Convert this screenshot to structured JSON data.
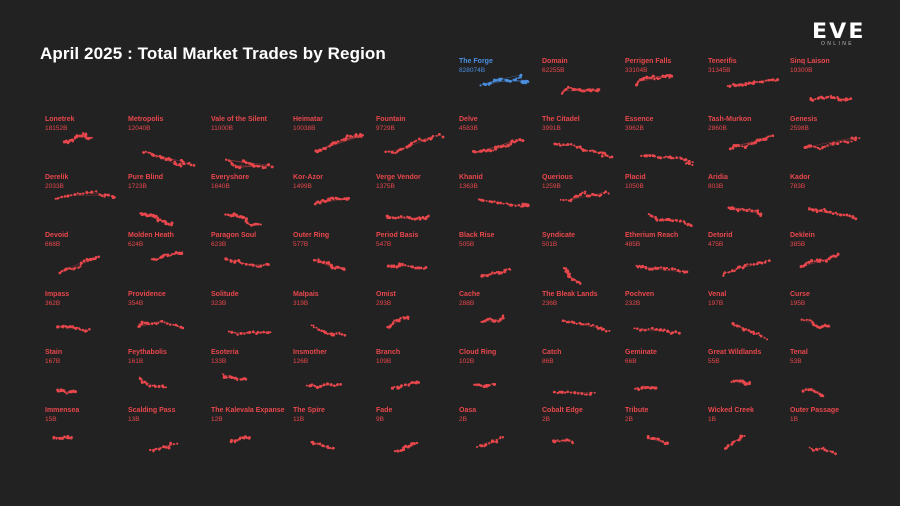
{
  "chart_data": {
    "type": "small-multiples",
    "title": "April 2025 : Total Market Trades by Region",
    "highlight_color": "#4a8fe0",
    "default_color": "#e8474c",
    "background": "#222222",
    "regions": [
      {
        "name": "The Forge",
        "value": "828074B",
        "highlight": true
      },
      {
        "name": "Domain",
        "value": "62255B"
      },
      {
        "name": "Perrigen Falls",
        "value": "33104B"
      },
      {
        "name": "Tenerifis",
        "value": "31345B"
      },
      {
        "name": "Sinq Laison",
        "value": "19300B"
      },
      {
        "name": "Lonetrek",
        "value": "18152B"
      },
      {
        "name": "Metropolis",
        "value": "12040B"
      },
      {
        "name": "Vale of the Silent",
        "value": "11000B"
      },
      {
        "name": "Heimatar",
        "value": "10038B"
      },
      {
        "name": "Fountain",
        "value": "9729B"
      },
      {
        "name": "Delve",
        "value": "4583B"
      },
      {
        "name": "The Citadel",
        "value": "3991B"
      },
      {
        "name": "Essence",
        "value": "3962B"
      },
      {
        "name": "Tash-Murkon",
        "value": "2860B"
      },
      {
        "name": "Genesis",
        "value": "2598B"
      },
      {
        "name": "Derelik",
        "value": "2033B"
      },
      {
        "name": "Pure Blind",
        "value": "1723B"
      },
      {
        "name": "Everyshore",
        "value": "1640B"
      },
      {
        "name": "Kor-Azor",
        "value": "1499B"
      },
      {
        "name": "Verge Vendor",
        "value": "1375B"
      },
      {
        "name": "Khanid",
        "value": "1363B"
      },
      {
        "name": "Querious",
        "value": "1259B"
      },
      {
        "name": "Placid",
        "value": "1050B"
      },
      {
        "name": "Aridia",
        "value": "803B"
      },
      {
        "name": "Kador",
        "value": "783B"
      },
      {
        "name": "Devoid",
        "value": "668B"
      },
      {
        "name": "Molden Heath",
        "value": "624B"
      },
      {
        "name": "Paragon Soul",
        "value": "623B"
      },
      {
        "name": "Outer Ring",
        "value": "577B"
      },
      {
        "name": "Period Basis",
        "value": "547B"
      },
      {
        "name": "Black Rise",
        "value": "505B"
      },
      {
        "name": "Syndicate",
        "value": "501B"
      },
      {
        "name": "Etherium Reach",
        "value": "485B"
      },
      {
        "name": "Detorid",
        "value": "475B"
      },
      {
        "name": "Deklein",
        "value": "385B"
      },
      {
        "name": "Impass",
        "value": "362B"
      },
      {
        "name": "Providence",
        "value": "354B"
      },
      {
        "name": "Solitude",
        "value": "323B"
      },
      {
        "name": "Malpais",
        "value": "319B"
      },
      {
        "name": "Omist",
        "value": "293B"
      },
      {
        "name": "Cache",
        "value": "288B"
      },
      {
        "name": "The Bleak Lands",
        "value": "236B"
      },
      {
        "name": "Pochven",
        "value": "232B"
      },
      {
        "name": "Venal",
        "value": "197B"
      },
      {
        "name": "Curse",
        "value": "195B"
      },
      {
        "name": "Stain",
        "value": "167B"
      },
      {
        "name": "Feythabolis",
        "value": "161B"
      },
      {
        "name": "Esoteria",
        "value": "133B"
      },
      {
        "name": "Insmother",
        "value": "126B"
      },
      {
        "name": "Branch",
        "value": "109B"
      },
      {
        "name": "Cloud Ring",
        "value": "102B"
      },
      {
        "name": "Catch",
        "value": "86B"
      },
      {
        "name": "Geminate",
        "value": "66B"
      },
      {
        "name": "Great Wildlands",
        "value": "55B"
      },
      {
        "name": "Tenal",
        "value": "53B"
      },
      {
        "name": "Immensea",
        "value": "15B"
      },
      {
        "name": "Scalding Pass",
        "value": "13B"
      },
      {
        "name": "The Kalevala Expanse",
        "value": "12B"
      },
      {
        "name": "The Spire",
        "value": "11B"
      },
      {
        "name": "Fade",
        "value": "9B"
      },
      {
        "name": "Oasa",
        "value": "2B"
      },
      {
        "name": "Cobalt Edge",
        "value": "2B"
      },
      {
        "name": "Tribute",
        "value": "2B"
      },
      {
        "name": "Wicked Creek",
        "value": "1B"
      },
      {
        "name": "Outer Passage",
        "value": "1B"
      }
    ]
  },
  "logo": {
    "mark": "EVE",
    "sub": "ONLINE"
  }
}
